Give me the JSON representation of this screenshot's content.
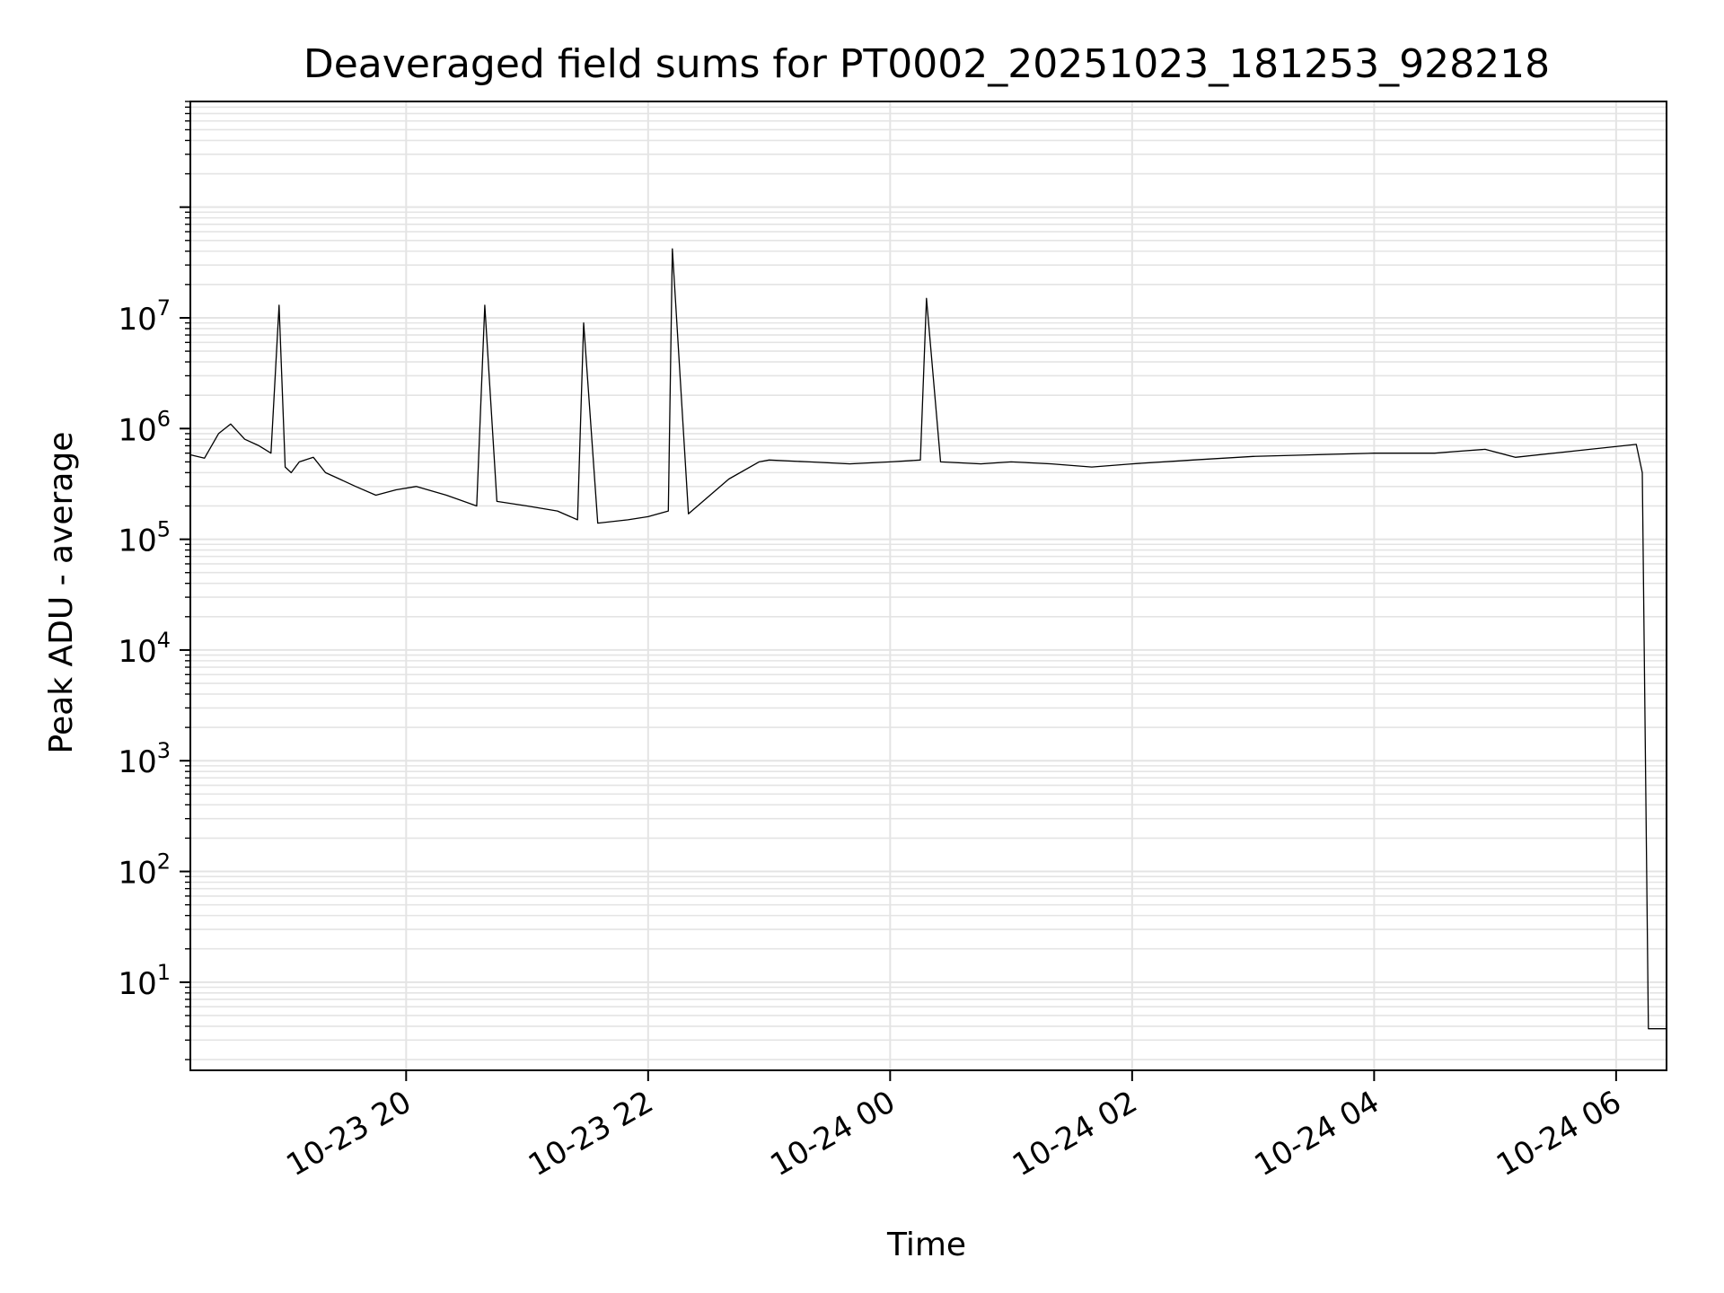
{
  "chart_data": {
    "type": "line",
    "title": "Deaveraged field sums for PT0002_20251023_181253_928218",
    "xlabel": "Time",
    "ylabel": "Peak ADU - average",
    "yscale": "log",
    "ylim": [
      1.6,
      900000000
    ],
    "xlim": [
      "2025-10-23 18:13",
      "2025-10-24 06:25"
    ],
    "grid": true,
    "line_color": "#000000",
    "grid_color": "#e4e4e4",
    "xtick_labels": [
      "10-23 20",
      "10-23 22",
      "10-24 00",
      "10-24 02",
      "10-24 04",
      "10-24 06"
    ],
    "xtick_dates": [
      "2025-10-23 20:00",
      "2025-10-23 22:00",
      "2025-10-24 00:00",
      "2025-10-24 02:00",
      "2025-10-24 04:00",
      "2025-10-24 06:00"
    ],
    "ytick_labels": [
      {
        "base": "10",
        "exp": "1",
        "value": 10
      },
      {
        "base": "10",
        "exp": "2",
        "value": 100
      },
      {
        "base": "10",
        "exp": "3",
        "value": 1000
      },
      {
        "base": "10",
        "exp": "4",
        "value": 10000
      },
      {
        "base": "10",
        "exp": "5",
        "value": 100000
      },
      {
        "base": "10",
        "exp": "6",
        "value": 1000000
      },
      {
        "base": "10",
        "exp": "7",
        "value": 10000000
      }
    ],
    "series": [
      {
        "x": [
          "2025-10-23 18:13",
          "2025-10-23 18:20",
          "2025-10-23 18:27",
          "2025-10-23 18:33",
          "2025-10-23 18:40",
          "2025-10-23 18:47",
          "2025-10-23 18:53",
          "2025-10-23 18:57",
          "2025-10-23 19:00",
          "2025-10-23 19:03",
          "2025-10-23 19:07",
          "2025-10-23 19:14",
          "2025-10-23 19:20",
          "2025-10-23 19:27",
          "2025-10-23 19:35",
          "2025-10-23 19:45",
          "2025-10-23 19:55",
          "2025-10-23 20:05",
          "2025-10-23 20:20",
          "2025-10-23 20:35",
          "2025-10-23 20:39",
          "2025-10-23 20:45",
          "2025-10-23 21:00",
          "2025-10-23 21:15",
          "2025-10-23 21:25",
          "2025-10-23 21:28",
          "2025-10-23 21:35",
          "2025-10-23 21:50",
          "2025-10-23 22:00",
          "2025-10-23 22:05",
          "2025-10-23 22:10",
          "2025-10-23 22:12",
          "2025-10-23 22:20",
          "2025-10-23 22:40",
          "2025-10-23 22:55",
          "2025-10-23 23:00",
          "2025-10-23 23:20",
          "2025-10-23 23:40",
          "2025-10-24 00:00",
          "2025-10-24 00:15",
          "2025-10-24 00:18",
          "2025-10-24 00:25",
          "2025-10-24 00:45",
          "2025-10-24 01:00",
          "2025-10-24 01:20",
          "2025-10-24 01:40",
          "2025-10-24 02:00",
          "2025-10-24 02:30",
          "2025-10-24 03:00",
          "2025-10-24 03:30",
          "2025-10-24 04:00",
          "2025-10-24 04:30",
          "2025-10-24 04:40",
          "2025-10-24 04:55",
          "2025-10-24 05:10",
          "2025-10-24 06:10",
          "2025-10-24 06:13",
          "2025-10-24 06:16",
          "2025-10-24 06:19",
          "2025-10-24 06:25"
        ],
        "y": [
          580000,
          540000,
          900000,
          1100000,
          800000,
          700000,
          600000,
          13000000,
          450000,
          400000,
          500000,
          550000,
          400000,
          350000,
          300000,
          250000,
          280000,
          300000,
          250000,
          200000,
          13000000,
          220000,
          200000,
          180000,
          150000,
          9000000,
          140000,
          150000,
          160000,
          170000,
          180000,
          42000000,
          170000,
          350000,
          500000,
          520000,
          500000,
          480000,
          500000,
          520000,
          15000000,
          500000,
          480000,
          500000,
          480000,
          450000,
          480000,
          520000,
          560000,
          580000,
          600000,
          600000,
          620000,
          650000,
          550000,
          720000,
          400000,
          3.8,
          3.8,
          3.8
        ]
      }
    ]
  }
}
